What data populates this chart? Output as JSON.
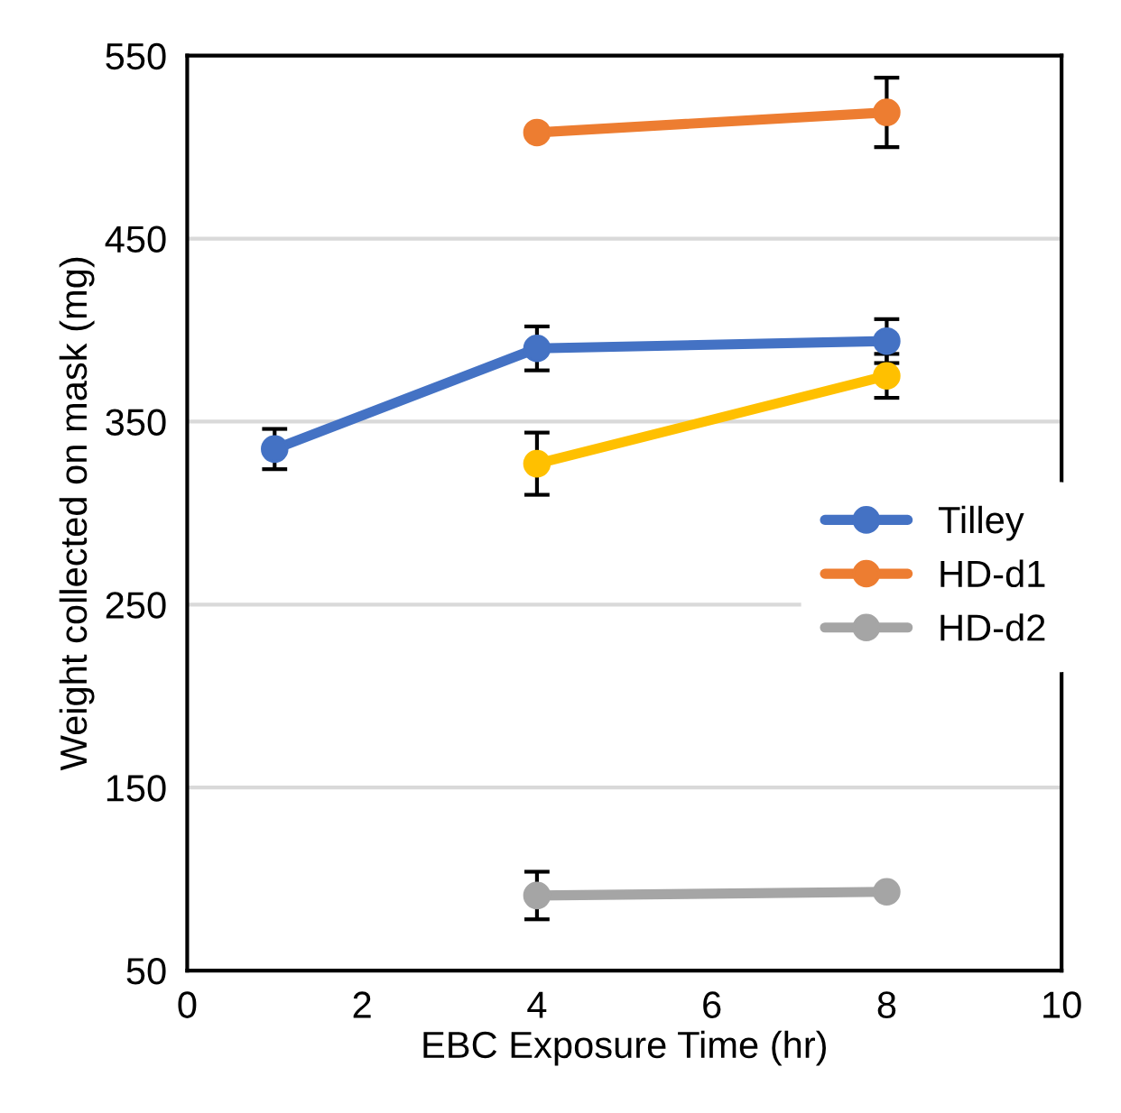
{
  "chart_data": {
    "type": "line",
    "xlabel": "EBC Exposure Time (hr)",
    "ylabel": "Weight collected on mask (mg)",
    "xlim": [
      0,
      10
    ],
    "xticks": [
      0,
      2,
      4,
      6,
      8,
      10
    ],
    "ylim": [
      50,
      550
    ],
    "yticks": [
      50,
      150,
      250,
      350,
      450,
      550
    ],
    "grid": "y",
    "legend": "right",
    "marker": "circle",
    "line_style": "solid",
    "series": [
      {
        "name": "Tilley",
        "color": "#4472c4",
        "x": [
          1,
          4,
          8
        ],
        "values": [
          335,
          390,
          394
        ],
        "errors": [
          11,
          12,
          12
        ]
      },
      {
        "name": "HD-d1",
        "color": "#ed7d31",
        "x": [
          4,
          8
        ],
        "values": [
          508,
          519
        ],
        "errors": [
          null,
          19
        ]
      },
      {
        "name": "HD-d2",
        "color": "#a5a5a5",
        "x": [
          4,
          8
        ],
        "values": [
          91,
          93
        ],
        "errors": [
          13,
          null
        ]
      },
      {
        "color": "#ffc000",
        "x": [
          4,
          8
        ],
        "values": [
          327,
          375
        ],
        "errors": [
          17,
          12
        ]
      }
    ]
  }
}
